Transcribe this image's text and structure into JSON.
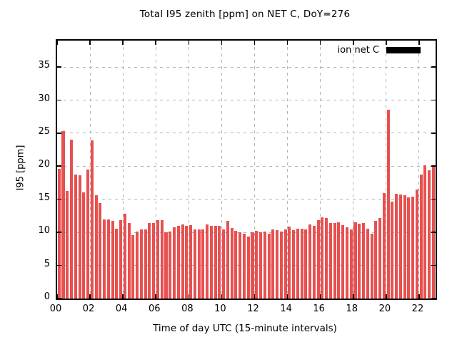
{
  "title": "Total I95 zenith [ppm] on NET C, DoY=276",
  "xlabel": "Time of day UTC (15-minute intervals)",
  "ylabel": "I95 [ppm]",
  "legend": {
    "label": "ion net C",
    "swatch_color": "#000000"
  },
  "colors": {
    "bar": "#e85050",
    "grid": "#b4b4b4",
    "axis": "#000000",
    "background": "#ffffff",
    "text": "#000000"
  },
  "chart_data": {
    "type": "bar",
    "title": "Total I95 zenith [ppm] on NET C, DoY=276",
    "xlabel": "Time of day UTC (15-minute intervals)",
    "ylabel": "I95 [ppm]",
    "legend_entries": [
      "ion net C"
    ],
    "legend_position": "top-right-inside",
    "grid": "dashed",
    "interval_minutes": 15,
    "x_start": "00:00",
    "x_end": "23:00",
    "xlim_hours": [
      0,
      23
    ],
    "ylim": [
      0,
      39
    ],
    "y_ticks": [
      0,
      5,
      10,
      15,
      20,
      25,
      30,
      35
    ],
    "x_tick_hours": [
      0,
      2,
      4,
      6,
      8,
      10,
      12,
      14,
      16,
      18,
      20,
      22
    ],
    "x_tick_labels": [
      "00",
      "02",
      "04",
      "06",
      "08",
      "10",
      "12",
      "14",
      "16",
      "18",
      "20",
      "22"
    ],
    "values": [
      19.6,
      25.3,
      16.3,
      24.0,
      18.8,
      18.6,
      16.1,
      19.5,
      23.9,
      15.6,
      14.4,
      12.0,
      12.0,
      11.7,
      10.6,
      11.9,
      12.8,
      11.4,
      9.6,
      10.1,
      10.4,
      10.5,
      11.4,
      11.4,
      11.9,
      11.9,
      10.0,
      10.1,
      10.8,
      11.0,
      11.2,
      11.0,
      11.1,
      10.5,
      10.4,
      10.5,
      11.2,
      11.0,
      11.0,
      11.0,
      10.5,
      11.7,
      10.7,
      10.2,
      10.0,
      9.8,
      9.4,
      10.0,
      10.2,
      10.0,
      10.1,
      9.8,
      10.4,
      10.3,
      10.1,
      10.4,
      10.9,
      10.3,
      10.6,
      10.6,
      10.4,
      11.2,
      11.0,
      11.9,
      12.3,
      12.2,
      11.4,
      11.4,
      11.5,
      11.1,
      10.8,
      10.5,
      11.5,
      11.3,
      11.4,
      10.6,
      9.8,
      11.7,
      12.2,
      16.0,
      28.5,
      14.7,
      15.8,
      15.7,
      15.6,
      15.3,
      15.4,
      16.5,
      18.7,
      20.2,
      19.4,
      20.1
    ]
  }
}
